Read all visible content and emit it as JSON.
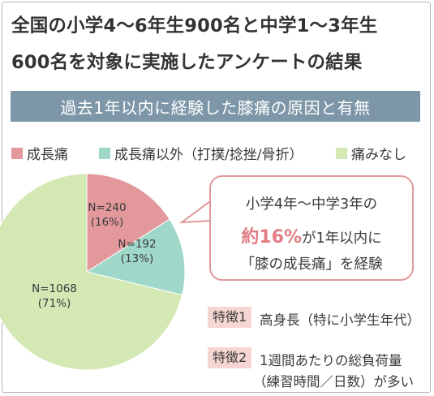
{
  "title": {
    "line1": "全国の小学4〜6年生900名と中学1〜3年生",
    "line2": "600名を対象に実施したアンケートの結果"
  },
  "banner": "過去1年以内に経験した膝痛の原因と有無",
  "legend": [
    {
      "label": "成長痛",
      "color": "#e3999c"
    },
    {
      "label": "成長痛以外（打撲/捻挫/骨折）",
      "color": "#9fd8c9"
    },
    {
      "label": "痛みなし",
      "color": "#d4e8b4"
    }
  ],
  "chart_data": {
    "type": "pie",
    "slices": [
      {
        "label": "成長痛",
        "count_label": "N=240",
        "percent_label": "(16%)",
        "value": 240,
        "percent": 16,
        "color": "#e3999c"
      },
      {
        "label": "成長痛以外（打撲/捻挫/骨折）",
        "count_label": "N=192",
        "percent_label": "(13%)",
        "value": 192,
        "percent": 13,
        "color": "#9fd8c9"
      },
      {
        "label": "痛みなし",
        "count_label": "N=1068",
        "percent_label": "(71%)",
        "value": 1068,
        "percent": 71,
        "color": "#d4e8b4"
      }
    ],
    "start": "12 o'clock",
    "direction": "clockwise",
    "legend_position": "top"
  },
  "callout": {
    "line1": "小学4年〜中学3年の",
    "line2_emph": "約16%",
    "line2_rest": "が1年以内に",
    "line3": "「膝の成長痛」を経験"
  },
  "features": [
    {
      "tag": "特徴1",
      "text": "高身長（特に小学生年代）"
    },
    {
      "tag": "特徴2",
      "text": "1週間あたりの総負荷量",
      "text2": "（練習時間／日数）が多い"
    }
  ]
}
